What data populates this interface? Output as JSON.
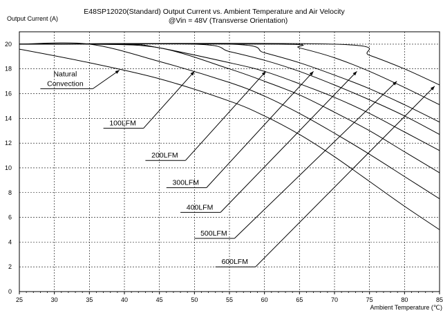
{
  "chart_data": {
    "type": "line",
    "title": "E48SP12020(Standard)  Output Current vs. Ambient Temperature and Air Velocity",
    "subtitle": "@Vin = 48V (Transverse Orientation)",
    "ylabel": "Output Current (A)",
    "xlabel": "Ambient Temperature (℃)",
    "xlim": [
      25,
      85
    ],
    "ylim": [
      0,
      21
    ],
    "xticks": [
      25,
      30,
      35,
      40,
      45,
      50,
      55,
      60,
      65,
      70,
      75,
      80,
      85
    ],
    "yticks": [
      0,
      2,
      4,
      6,
      8,
      10,
      12,
      14,
      16,
      18,
      20
    ],
    "grid": true,
    "series": [
      {
        "name": "Natural Convection",
        "x": [
          25,
          35,
          45,
          55,
          60,
          65,
          70,
          75,
          80,
          85
        ],
        "values": [
          19.6,
          18.5,
          17.2,
          15.4,
          14.2,
          12.7,
          10.9,
          8.9,
          6.9,
          5.0
        ]
      },
      {
        "name": "100LFM",
        "x": [
          25,
          35,
          45,
          55,
          60,
          65,
          70,
          75,
          80,
          85
        ],
        "values": [
          20.0,
          20.0,
          18.6,
          16.9,
          15.8,
          14.4,
          12.8,
          11.1,
          9.3,
          7.5
        ]
      },
      {
        "name": "200LFM",
        "x": [
          25,
          35,
          45,
          55,
          60,
          65,
          70,
          75,
          80,
          85
        ],
        "values": [
          20.0,
          20.0,
          19.7,
          18.0,
          17.0,
          15.9,
          14.5,
          13.0,
          11.3,
          9.6
        ]
      },
      {
        "name": "300LFM",
        "x": [
          25,
          40,
          45,
          55,
          60,
          65,
          70,
          75,
          80,
          85
        ],
        "values": [
          20.0,
          20.0,
          19.7,
          18.5,
          17.8,
          16.8,
          15.7,
          14.4,
          12.9,
          11.4
        ]
      },
      {
        "name": "400LFM",
        "x": [
          25,
          50,
          55,
          60,
          65,
          70,
          75,
          80,
          85
        ],
        "values": [
          20.0,
          20.0,
          19.4,
          18.7,
          17.8,
          16.7,
          15.5,
          14.2,
          12.7
        ]
      },
      {
        "name": "500LFM",
        "x": [
          25,
          55,
          60,
          65,
          70,
          75,
          80,
          85
        ],
        "values": [
          20.0,
          20.0,
          19.3,
          18.5,
          17.5,
          16.4,
          15.1,
          13.7
        ]
      },
      {
        "name": "600LFM",
        "x": [
          25,
          62,
          65,
          70,
          75,
          80,
          85
        ],
        "values": [
          20.0,
          20.0,
          19.7,
          18.9,
          17.8,
          16.5,
          15.1
        ]
      },
      {
        "name": "",
        "x": [
          25,
          70,
          75,
          80,
          85
        ],
        "values": [
          20.0,
          20.0,
          19.1,
          18.0,
          16.7
        ]
      }
    ],
    "annotations": [
      {
        "label": "Natural\nConvection",
        "x": 28,
        "y": 16.4,
        "tip_x": 39.3,
        "tip_y": 17.9
      },
      {
        "label": "100LFM",
        "x": 37,
        "y": 13.2,
        "tip_x": 50,
        "tip_y": 17.8
      },
      {
        "label": "200LFM",
        "x": 43,
        "y": 10.6,
        "tip_x": 60.2,
        "tip_y": 17.8
      },
      {
        "label": "300LFM",
        "x": 46,
        "y": 8.4,
        "tip_x": 67.0,
        "tip_y": 17.8
      },
      {
        "label": "400LFM",
        "x": 48,
        "y": 6.4,
        "tip_x": 73.2,
        "tip_y": 17.8
      },
      {
        "label": "500LFM",
        "x": 50,
        "y": 4.3,
        "tip_x": 78.9,
        "tip_y": 17.0
      },
      {
        "label": "600LFM",
        "x": 53,
        "y": 2.0,
        "tip_x": 84.3,
        "tip_y": 16.6
      }
    ]
  }
}
